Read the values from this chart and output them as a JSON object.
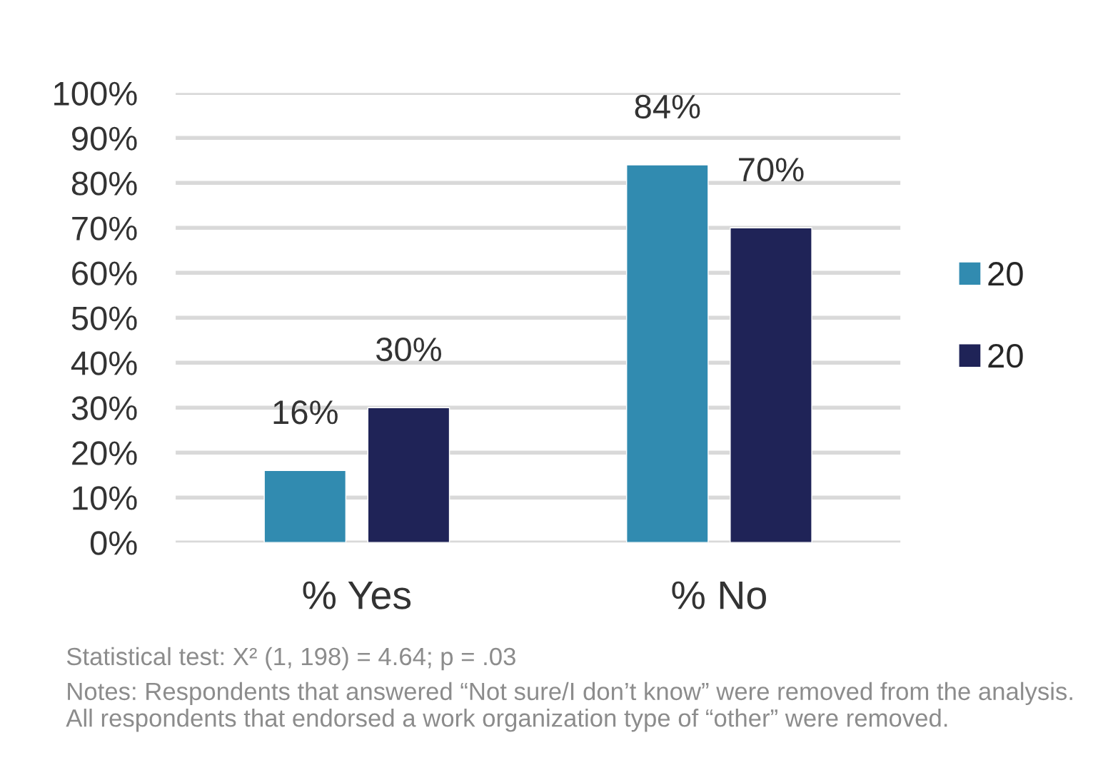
{
  "chart_data": {
    "type": "bar",
    "categories": [
      "% Yes",
      "% No"
    ],
    "series": [
      {
        "name": "20",
        "color": "#318bb0",
        "values": [
          16,
          84
        ]
      },
      {
        "name": "20",
        "color": "#1f2357",
        "values": [
          30,
          70
        ]
      }
    ],
    "ylim": [
      0,
      100
    ],
    "yticks": [
      {
        "value": 0,
        "label": "0%"
      },
      {
        "value": 10,
        "label": "10%"
      },
      {
        "value": 20,
        "label": "20%"
      },
      {
        "value": 30,
        "label": "30%"
      },
      {
        "value": 40,
        "label": "40%"
      },
      {
        "value": 50,
        "label": "50%"
      },
      {
        "value": 60,
        "label": "60%"
      },
      {
        "value": 70,
        "label": "70%"
      },
      {
        "value": 80,
        "label": "80%"
      },
      {
        "value": 90,
        "label": "90%"
      },
      {
        "value": 100,
        "label": "100%"
      }
    ],
    "value_labels": [
      [
        "16%",
        "84%"
      ],
      [
        "30%",
        "70%"
      ]
    ],
    "grid": "y",
    "legend": "right",
    "annotations": [
      "Statistical test: X² (1, 198) = 4.64; p = .03",
      "Notes: Respondents that answered “Not sure/I don’t know” were removed from the analysis. All respondents that endorsed a work organization type of “other” were removed."
    ]
  }
}
